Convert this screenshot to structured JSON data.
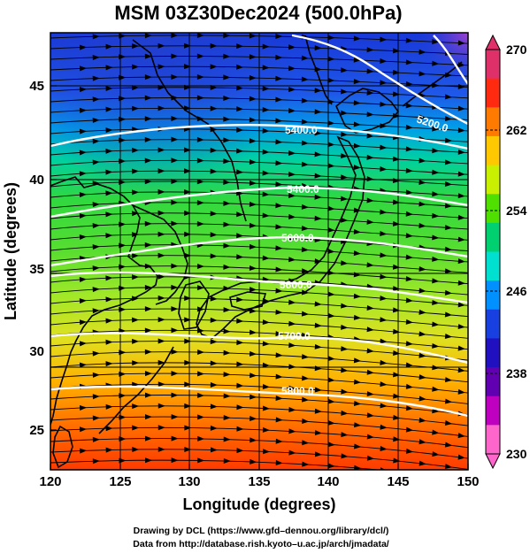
{
  "title": "MSM 03Z30Dec2024 (500.0hPa)",
  "axes": {
    "xlabel": "Longitude (degrees)",
    "ylabel": "Latitude  (degrees)",
    "xticks": [
      "120",
      "125",
      "130",
      "135",
      "140",
      "145",
      "150"
    ],
    "yticks": [
      "25",
      "30",
      "35",
      "40",
      "45"
    ]
  },
  "colorbar": {
    "ticks": [
      "270",
      "262",
      "254",
      "246",
      "238",
      "230"
    ],
    "colors": [
      "#e0306a",
      "#ff2a10",
      "#ff7a00",
      "#ffc800",
      "#c8f000",
      "#50e000",
      "#00d070",
      "#00e0d0",
      "#0090ff",
      "#1840e0",
      "#2010c0",
      "#6000b0",
      "#c000c0",
      "#ff66cc"
    ]
  },
  "credits": {
    "line1": "Drawing by DCL (https://www.gfd–dennou.org/library/dcl/)",
    "line2": "Data from http://database.rish.kyoto–u.ac.jp/arch/jmadata/"
  },
  "map": {
    "temperature_unit_range": [
      230,
      270
    ],
    "lon_range": [
      120,
      150
    ],
    "lat_range": [
      22.5,
      48
    ],
    "contours": [
      {
        "label": "5200.0"
      },
      {
        "label": "5400.0"
      },
      {
        "label": "5400.0"
      },
      {
        "label": "5600.0"
      },
      {
        "label": "5600.0"
      },
      {
        "label": "5700.0"
      },
      {
        "label": "5800.0"
      }
    ]
  }
}
